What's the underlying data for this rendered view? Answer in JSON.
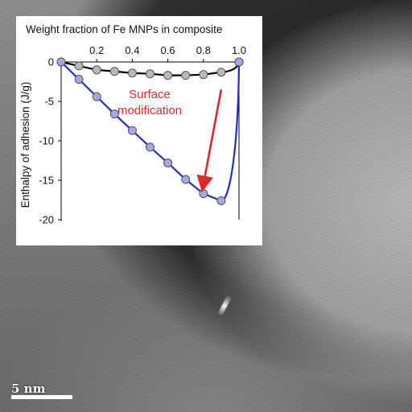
{
  "chart_data": {
    "type": "line",
    "title": "Weight fraction of Fe MNPs in composite",
    "xlabel": "Weight fraction of Fe MNPs in composite",
    "ylabel": "Enthalpy of adhesion (J/g)",
    "x_axis_position": "top",
    "xlim": [
      0,
      1.0
    ],
    "ylim": [
      -20,
      0
    ],
    "x_ticks": [
      0.2,
      0.4,
      0.6,
      0.8,
      1.0
    ],
    "x_tick_labels": [
      "0.2",
      "0.4",
      "0.6",
      "0.8",
      "1.0"
    ],
    "y_ticks": [
      0,
      -5,
      -10,
      -15,
      -20
    ],
    "y_tick_labels": [
      "0",
      "-5",
      "-10",
      "-15",
      "-20"
    ],
    "grid": false,
    "series": [
      {
        "color": "#000000",
        "marker_fill": "#b9b9b9",
        "x": [
          0,
          0.1,
          0.2,
          0.3,
          0.4,
          0.5,
          0.6,
          0.7,
          0.8,
          0.9,
          1.0
        ],
        "y": [
          0,
          -0.5,
          -1.0,
          -1.2,
          -1.4,
          -1.5,
          -1.7,
          -1.7,
          -1.6,
          -1.3,
          0
        ]
      },
      {
        "color": "#1f2fc4",
        "marker_fill": "#a6a8e6",
        "x": [
          0,
          0.1,
          0.2,
          0.3,
          0.4,
          0.5,
          0.6,
          0.7,
          0.8,
          0.9,
          1.0
        ],
        "y": [
          0,
          -2.2,
          -4.4,
          -6.6,
          -8.7,
          -10.8,
          -12.8,
          -14.9,
          -16.7,
          -17.6,
          0
        ]
      }
    ],
    "annotation": {
      "text_line1": "Surface",
      "text_line2": "modification",
      "color": "#e0282b",
      "arrow_from": [
        0.9,
        -3.5
      ],
      "arrow_to": [
        0.8,
        -15.5
      ]
    }
  },
  "image": {
    "scale_bar_label": "5 nm"
  }
}
